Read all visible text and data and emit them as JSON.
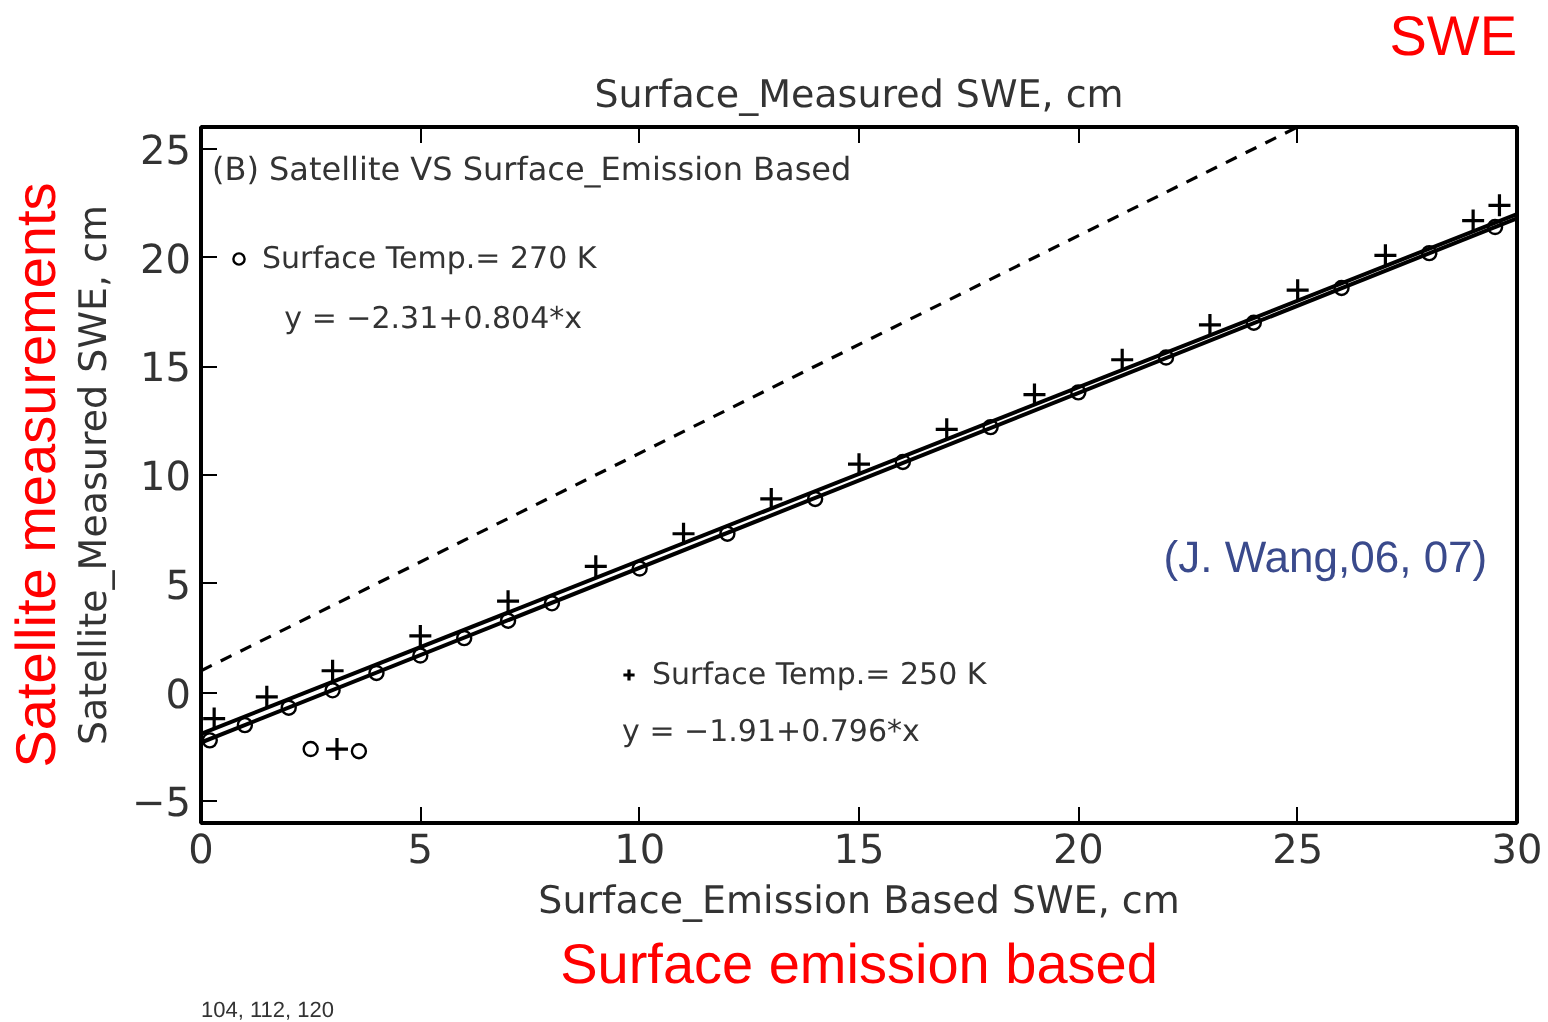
{
  "chart_data": {
    "type": "scatter",
    "xlabel": "Surface_Emission Based SWE, cm",
    "ylabel": "Satellite_Measured SWE, cm",
    "x2label": "Surface_Measured SWE, cm",
    "xlim": [
      0,
      30
    ],
    "xticks": [
      0,
      5,
      10,
      15,
      20,
      25,
      30
    ],
    "ylim": [
      -6,
      26
    ],
    "yticks": [
      -5,
      0,
      5,
      10,
      15,
      20,
      25
    ],
    "grid": false,
    "legend": "top left",
    "series": [
      {
        "name": "Surface Temp.= 270 K",
        "marker": "circle",
        "color": "#000000",
        "x": [
          0.2,
          1,
          2,
          2.5,
          3,
          3.6,
          4,
          5,
          6,
          7,
          8,
          10,
          12,
          14,
          16,
          18,
          20,
          22,
          24,
          26,
          28,
          29.5
        ],
        "values": [
          -2.2,
          -1.5,
          -0.7,
          -2.6,
          0.1,
          -2.7,
          0.9,
          1.7,
          2.5,
          3.3,
          4.1,
          5.7,
          7.3,
          8.9,
          10.6,
          12.2,
          13.8,
          15.4,
          17.0,
          18.6,
          20.2,
          21.4
        ]
      },
      {
        "name": "Surface Temp.= 250 K",
        "marker": "cross",
        "color": "#000000",
        "x": [
          0.3,
          1.5,
          3,
          3.1,
          5,
          7,
          9,
          11,
          13,
          15,
          17,
          19,
          21,
          23,
          25,
          27,
          29,
          29.6
        ],
        "values": [
          -1.2,
          -0.2,
          1.0,
          -2.6,
          2.6,
          4.2,
          5.8,
          7.3,
          8.9,
          10.5,
          12.1,
          13.7,
          15.3,
          16.9,
          18.5,
          20.1,
          21.7,
          22.4
        ]
      },
      {
        "type": "line",
        "line_style": "solid",
        "color": "#000000",
        "x": [
          0,
          30
        ],
        "values": [
          -2.3,
          21.8
        ]
      },
      {
        "type": "line",
        "line_style": "solid",
        "color": "#000000",
        "x": [
          0,
          30
        ],
        "values": [
          -1.9,
          22.0
        ]
      },
      {
        "type": "line",
        "line_style": "dashed",
        "color": "#000000",
        "x": [
          0,
          25
        ],
        "values": [
          1,
          26
        ]
      }
    ],
    "annotations": [
      "(B) Satellite VS Surface_Emission Based",
      "y = −2.31+0.804*x",
      "y = −1.91+0.796*x",
      "(J.  Wang,06, 07)",
      "SWE",
      "Satellite measurements",
      "Surface emission based",
      "104, 112, 120"
    ]
  }
}
